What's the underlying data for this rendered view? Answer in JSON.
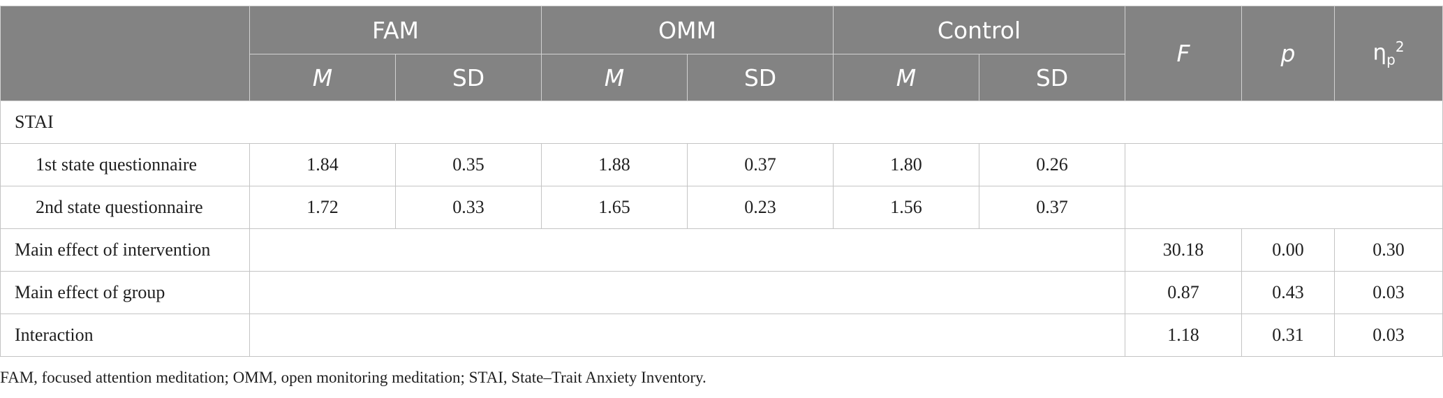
{
  "header": {
    "groups": [
      "FAM",
      "OMM",
      "Control"
    ],
    "stats": [
      "F",
      "p"
    ],
    "eta_base": "η",
    "eta_sub": "p",
    "eta_sup": "2",
    "sub_m": "M",
    "sub_sd": "SD"
  },
  "rows": {
    "section": "STAI",
    "q1": {
      "label": "1st state questionnaire",
      "vals": [
        "1.84",
        "0.35",
        "1.88",
        "0.37",
        "1.80",
        "0.26"
      ]
    },
    "q2": {
      "label": "2nd state questionnaire",
      "vals": [
        "1.72",
        "0.33",
        "1.65",
        "0.23",
        "1.56",
        "0.37"
      ]
    },
    "intervention": {
      "label": "Main effect of intervention",
      "F": "30.18",
      "p": "0.00",
      "eta": "0.30"
    },
    "group": {
      "label": "Main effect of group",
      "F": "0.87",
      "p": "0.43",
      "eta": "0.03"
    },
    "interaction": {
      "label": "Interaction",
      "F": "1.18",
      "p": "0.31",
      "eta": "0.03"
    }
  },
  "footnote": "FAM, focused attention meditation; OMM, open monitoring meditation; STAI, State–Trait Anxiety Inventory."
}
